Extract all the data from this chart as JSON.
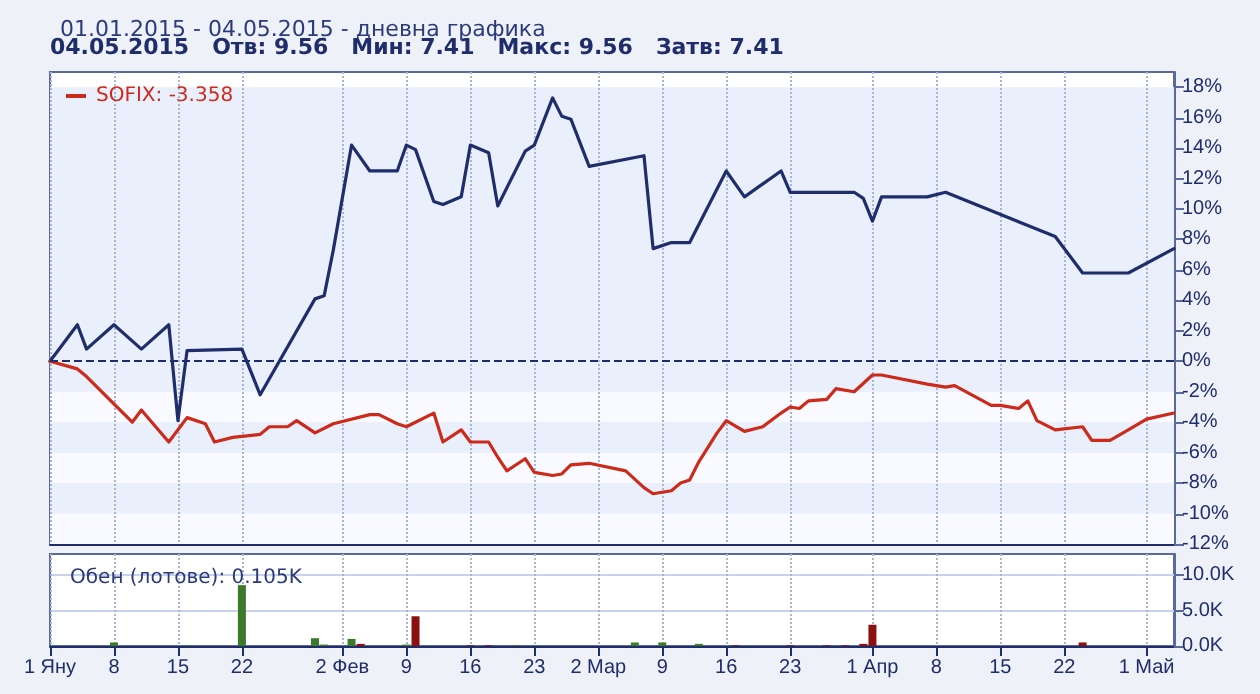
{
  "chart_data": [
    {
      "type": "line",
      "title": "01.01.2015 - 04.05.2015 - дневна графика",
      "annotations": [
        "04.05.2015   Отв: 9.56   Мин: 7.41   Макс: 9.56   Затв: 7.41"
      ],
      "xlim": [
        "2015-01-01",
        "2015-05-04"
      ],
      "xticks": [
        "2015-01-01",
        "2015-01-08",
        "2015-01-15",
        "2015-01-22",
        "2015-02-02",
        "2015-02-09",
        "2015-02-16",
        "2015-02-23",
        "2015-03-02",
        "2015-03-09",
        "2015-03-16",
        "2015-03-23",
        "2015-04-01",
        "2015-04-08",
        "2015-04-15",
        "2015-04-22",
        "2015-05-01"
      ],
      "ylim": [
        -12,
        19
      ],
      "yticks": [
        {
          "value": -12,
          "label": "-12%"
        },
        {
          "value": -10,
          "label": "-10%"
        },
        {
          "value": -8,
          "label": "-8%"
        },
        {
          "value": -6,
          "label": "-6%"
        },
        {
          "value": -4,
          "label": "-4%"
        },
        {
          "value": -2,
          "label": "-2%"
        },
        {
          "value": 0,
          "label": "0%"
        },
        {
          "value": 2,
          "label": "2%"
        },
        {
          "value": 4,
          "label": "4%"
        },
        {
          "value": 6,
          "label": "6%"
        },
        {
          "value": 8,
          "label": "8%"
        },
        {
          "value": 10,
          "label": "10%"
        },
        {
          "value": 12,
          "label": "12%"
        },
        {
          "value": 14,
          "label": "14%"
        },
        {
          "value": 16,
          "label": "16%"
        },
        {
          "value": 18,
          "label": "18%"
        }
      ],
      "series": [
        {
          "color": "#1f2d6b",
          "x": [
            "2015-01-01",
            "2015-01-04",
            "2015-01-05",
            "2015-01-08",
            "2015-01-11",
            "2015-01-14",
            "2015-01-15",
            "2015-01-16",
            "2015-01-22",
            "2015-01-24",
            "2015-01-30",
            "2015-01-31",
            "2015-02-01",
            "2015-02-03",
            "2015-02-05",
            "2015-02-08",
            "2015-02-09",
            "2015-02-10",
            "2015-02-12",
            "2015-02-13",
            "2015-02-15",
            "2015-02-16",
            "2015-02-18",
            "2015-02-19",
            "2015-02-22",
            "2015-02-23",
            "2015-02-25",
            "2015-02-26",
            "2015-02-27",
            "2015-03-01",
            "2015-03-07",
            "2015-03-08",
            "2015-03-10",
            "2015-03-12",
            "2015-03-16",
            "2015-03-18",
            "2015-03-22",
            "2015-03-23",
            "2015-03-30",
            "2015-03-31",
            "2015-04-01",
            "2015-04-02",
            "2015-04-07",
            "2015-04-09",
            "2015-04-21",
            "2015-04-24",
            "2015-04-29",
            "2015-05-04"
          ],
          "values": [
            0,
            2.4,
            0.8,
            2.4,
            0.8,
            2.4,
            -3.9,
            0.7,
            0.8,
            -2.2,
            4.1,
            4.3,
            7.3,
            14.2,
            12.5,
            12.5,
            14.2,
            13.9,
            10.5,
            10.3,
            10.8,
            14.2,
            13.7,
            10.2,
            13.8,
            14.2,
            17.3,
            16.1,
            15.9,
            12.8,
            13.5,
            7.4,
            7.8,
            7.8,
            12.5,
            10.8,
            12.5,
            11.1,
            11.1,
            10.7,
            9.2,
            10.8,
            10.8,
            11.1,
            8.2,
            5.8,
            5.8,
            7.4
          ]
        },
        {
          "name": "SOFIX: -3.358",
          "color": "#cc2a1a",
          "x": [
            "2015-01-01",
            "2015-01-04",
            "2015-01-05",
            "2015-01-10",
            "2015-01-11",
            "2015-01-12",
            "2015-01-14",
            "2015-01-16",
            "2015-01-18",
            "2015-01-19",
            "2015-01-21",
            "2015-01-24",
            "2015-01-25",
            "2015-01-27",
            "2015-01-28",
            "2015-01-30",
            "2015-02-01",
            "2015-02-05",
            "2015-02-06",
            "2015-02-08",
            "2015-02-09",
            "2015-02-12",
            "2015-02-13",
            "2015-02-15",
            "2015-02-16",
            "2015-02-18",
            "2015-02-19",
            "2015-02-20",
            "2015-02-22",
            "2015-02-23",
            "2015-02-25",
            "2015-02-26",
            "2015-02-27",
            "2015-03-01",
            "2015-03-05",
            "2015-03-07",
            "2015-03-08",
            "2015-03-10",
            "2015-03-11",
            "2015-03-12",
            "2015-03-13",
            "2015-03-15",
            "2015-03-16",
            "2015-03-18",
            "2015-03-20",
            "2015-03-22",
            "2015-03-23",
            "2015-03-24",
            "2015-03-25",
            "2015-03-27",
            "2015-03-28",
            "2015-03-30",
            "2015-04-01",
            "2015-04-02",
            "2015-04-07",
            "2015-04-09",
            "2015-04-10",
            "2015-04-14",
            "2015-04-15",
            "2015-04-17",
            "2015-04-18",
            "2015-04-19",
            "2015-04-21",
            "2015-04-24",
            "2015-04-25",
            "2015-04-27",
            "2015-04-29",
            "2015-05-01",
            "2015-05-04"
          ],
          "values": [
            0,
            -0.5,
            -1.0,
            -4.0,
            -3.2,
            -3.9,
            -5.3,
            -3.7,
            -4.1,
            -5.3,
            -5.0,
            -4.8,
            -4.3,
            -4.3,
            -3.9,
            -4.7,
            -4.1,
            -3.5,
            -3.5,
            -4.1,
            -4.3,
            -3.4,
            -5.3,
            -4.5,
            -5.3,
            -5.3,
            -6.3,
            -7.2,
            -6.4,
            -7.3,
            -7.5,
            -7.4,
            -6.8,
            -6.7,
            -7.2,
            -8.3,
            -8.7,
            -8.5,
            -8.0,
            -7.8,
            -6.6,
            -4.7,
            -3.9,
            -4.6,
            -4.3,
            -3.4,
            -3.0,
            -3.1,
            -2.6,
            -2.5,
            -1.8,
            -2.0,
            -0.9,
            -0.9,
            -1.5,
            -1.7,
            -1.6,
            -2.9,
            -2.9,
            -3.1,
            -2.6,
            -3.9,
            -4.5,
            -4.3,
            -5.2,
            -5.2,
            -4.5,
            -3.8,
            -3.4
          ]
        }
      ],
      "ref_lines": [
        {
          "axis": "y",
          "value": 0,
          "color": "#1f2d6b",
          "line_style": "dashed"
        }
      ],
      "grid": true,
      "legend": "top left",
      "tick_labels": "y",
      "marker": "none",
      "line_style": "solid"
    },
    {
      "type": "bar",
      "title": "Обен (лотове): 0.105K",
      "xlim": [
        "2015-01-01",
        "2015-05-04"
      ],
      "xticks": [
        {
          "value": "2015-01-01",
          "label": "1 Яну"
        },
        {
          "value": "2015-01-08",
          "label": "8"
        },
        {
          "value": "2015-01-15",
          "label": "15"
        },
        {
          "value": "2015-01-22",
          "label": "22"
        },
        {
          "value": "2015-02-02",
          "label": "2 Фев"
        },
        {
          "value": "2015-02-09",
          "label": "9"
        },
        {
          "value": "2015-02-16",
          "label": "16"
        },
        {
          "value": "2015-02-23",
          "label": "23"
        },
        {
          "value": "2015-03-02",
          "label": "2 Мар"
        },
        {
          "value": "2015-03-09",
          "label": "9"
        },
        {
          "value": "2015-03-16",
          "label": "16"
        },
        {
          "value": "2015-03-23",
          "label": "23"
        },
        {
          "value": "2015-04-01",
          "label": "1 Апр"
        },
        {
          "value": "2015-04-08",
          "label": "8"
        },
        {
          "value": "2015-04-15",
          "label": "15"
        },
        {
          "value": "2015-04-22",
          "label": "22"
        },
        {
          "value": "2015-05-01",
          "label": "1 Май"
        }
      ],
      "ylim": [
        0,
        13
      ],
      "yticks": [
        {
          "value": 0,
          "label": "0.0K"
        },
        {
          "value": 5,
          "label": "5.0K"
        },
        {
          "value": 10,
          "label": "10.0K"
        }
      ],
      "x": [
        "2015-01-08",
        "2015-01-16",
        "2015-01-22",
        "2015-01-30",
        "2015-01-31",
        "2015-02-03",
        "2015-02-04",
        "2015-02-09",
        "2015-02-10",
        "2015-02-16",
        "2015-02-18",
        "2015-02-21",
        "2015-02-23",
        "2015-03-06",
        "2015-03-09",
        "2015-03-13",
        "2015-03-17",
        "2015-03-23",
        "2015-03-27",
        "2015-03-29",
        "2015-03-31",
        "2015-04-01",
        "2015-04-24"
      ],
      "values": [
        0.5,
        0.1,
        8.6,
        1.1,
        0.2,
        1.0,
        0.3,
        0.2,
        4.2,
        0.1,
        0.1,
        0.1,
        0.1,
        0.5,
        0.5,
        0.3,
        0.1,
        0.1,
        0.1,
        0.1,
        0.3,
        3.0,
        0.5
      ],
      "colors": [
        "#3a7a2a",
        "#3a7a2a",
        "#3a7a2a",
        "#3a7a2a",
        "#3a7a2a",
        "#3a7a2a",
        "#8b1010",
        "#3a7a2a",
        "#8b1010",
        "#8b1010",
        "#8b1010",
        "#3a7a2a",
        "#3a7a2a",
        "#3a7a2a",
        "#3a7a2a",
        "#3a7a2a",
        "#8b1010",
        "#8b1010",
        "#8b1010",
        "#8b1010",
        "#8b1010",
        "#8b1010",
        "#8b1010"
      ],
      "grid": true
    }
  ]
}
